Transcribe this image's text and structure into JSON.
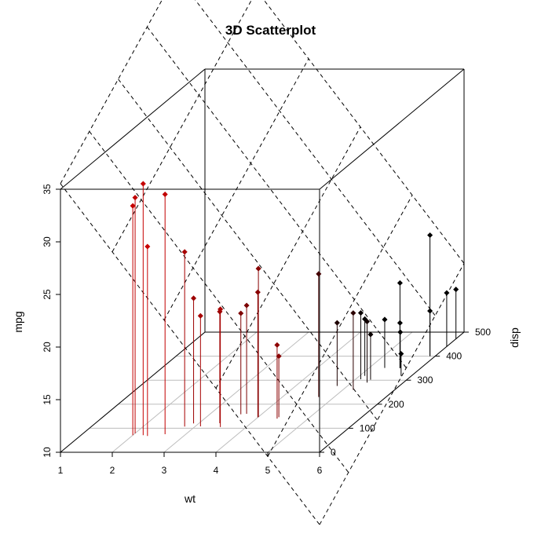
{
  "chart_data": {
    "type": "scatter",
    "title": "3D Scatterplot",
    "xlabel": "wt",
    "ylabel": "mpg",
    "zlabel": "disp",
    "xlim": [
      1,
      6
    ],
    "ylim": [
      10,
      35
    ],
    "zlim": [
      0,
      500
    ],
    "x_ticks": [
      "1",
      "2",
      "3",
      "4",
      "5",
      "6"
    ],
    "y_ticks": [
      "10",
      "15",
      "20",
      "25",
      "30",
      "35"
    ],
    "z_ticks": [
      "0",
      "100",
      "200",
      "300",
      "400",
      "500"
    ],
    "drop_lines": true,
    "regression_plane": true,
    "grid": true,
    "color_scale": [
      "#ff0000",
      "#000000"
    ],
    "points": [
      {
        "wt": 2.0,
        "mpg": 32.4,
        "disp": 79
      },
      {
        "wt": 2.0,
        "mpg": 31.8,
        "disp": 71
      },
      {
        "wt": 2.2,
        "mpg": 33.9,
        "disp": 71
      },
      {
        "wt": 2.3,
        "mpg": 28.0,
        "disp": 68
      },
      {
        "wt": 2.6,
        "mpg": 32.8,
        "disp": 75
      },
      {
        "wt": 2.8,
        "mpg": 26.6,
        "disp": 107
      },
      {
        "wt": 2.9,
        "mpg": 21.9,
        "disp": 120
      },
      {
        "wt": 3.1,
        "mpg": 20.5,
        "disp": 108
      },
      {
        "wt": 3.4,
        "mpg": 20.6,
        "disp": 121
      },
      {
        "wt": 3.5,
        "mpg": 21.2,
        "disp": 105
      },
      {
        "wt": 3.6,
        "mpg": 19.6,
        "disp": 158
      },
      {
        "wt": 3.7,
        "mpg": 20.3,
        "disp": 160
      },
      {
        "wt": 4.0,
        "mpg": 21.9,
        "disp": 145
      },
      {
        "wt": 4.0,
        "mpg": 24.1,
        "disp": 147
      },
      {
        "wt": 4.4,
        "mpg": 17.0,
        "disp": 140
      },
      {
        "wt": 4.4,
        "mpg": 15.8,
        "disp": 146
      },
      {
        "wt": 4.7,
        "mpg": 21.7,
        "disp": 230
      },
      {
        "wt": 4.8,
        "mpg": 16.0,
        "disp": 276
      },
      {
        "wt": 5.1,
        "mpg": 16.3,
        "disp": 304
      },
      {
        "wt": 5.1,
        "mpg": 15.4,
        "disp": 318
      },
      {
        "wt": 5.2,
        "mpg": 17.3,
        "disp": 260
      },
      {
        "wt": 5.3,
        "mpg": 14.3,
        "disp": 302
      },
      {
        "wt": 5.3,
        "mpg": 14.6,
        "disp": 351
      },
      {
        "wt": 5.3,
        "mpg": 15.8,
        "disp": 290
      },
      {
        "wt": 5.6,
        "mpg": 18.1,
        "disp": 350
      },
      {
        "wt": 5.6,
        "mpg": 14.3,
        "disp": 350
      },
      {
        "wt": 5.6,
        "mpg": 13.4,
        "disp": 351
      },
      {
        "wt": 5.8,
        "mpg": 12.1,
        "disp": 318
      },
      {
        "wt": 5.9,
        "mpg": 21.5,
        "disp": 400
      },
      {
        "wt": 5.9,
        "mpg": 14.3,
        "disp": 400
      },
      {
        "wt": 6.0,
        "mpg": 15.1,
        "disp": 440
      },
      {
        "wt": 6.0,
        "mpg": 14.7,
        "disp": 472
      }
    ]
  }
}
